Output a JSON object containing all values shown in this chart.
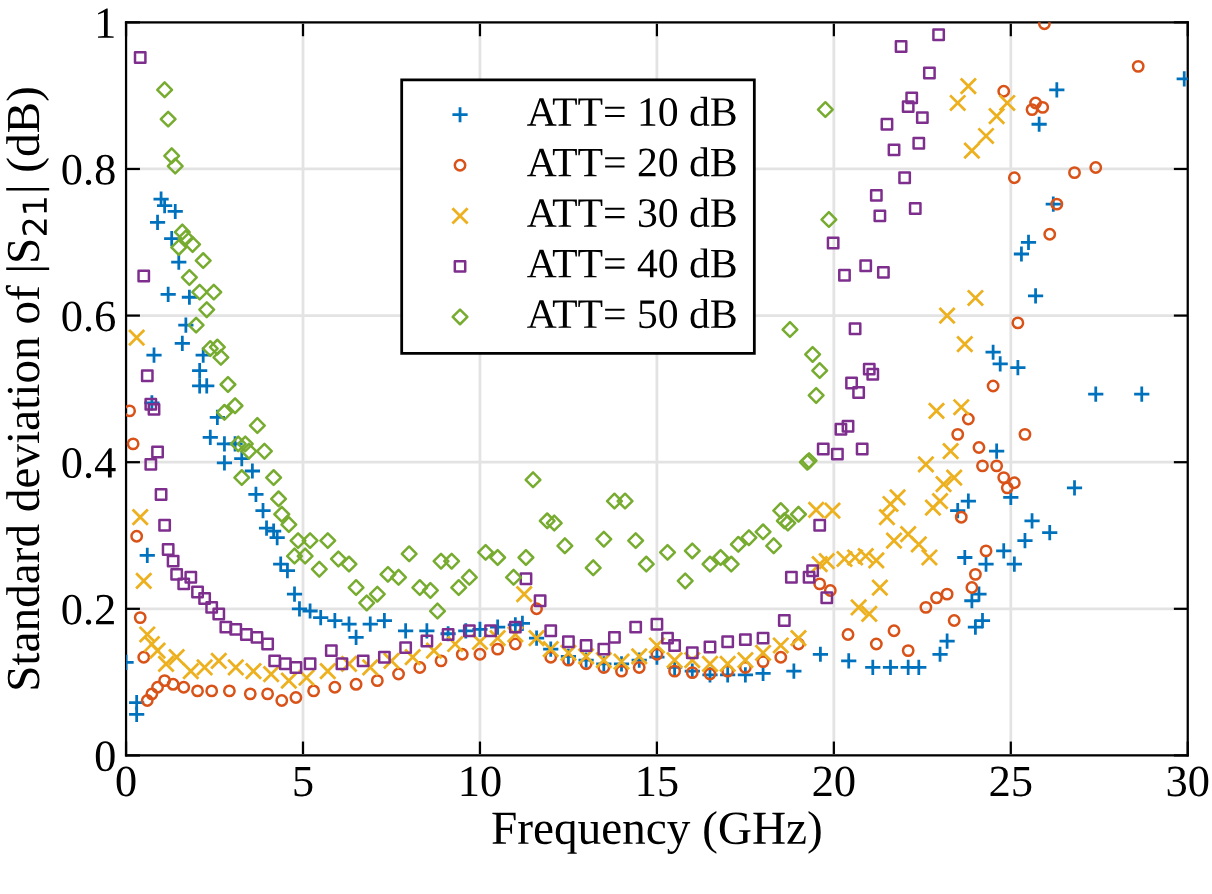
{
  "chart_data": {
    "type": "scatter",
    "xlabel": "Frequency (GHz)",
    "ylabel": "Standard deviation of |S$_{21}$| (dB)",
    "xlim": [
      0,
      30
    ],
    "ylim": [
      0,
      1
    ],
    "xticks": [
      0,
      5,
      10,
      15,
      20,
      25,
      30
    ],
    "yticks": [
      0,
      0.2,
      0.4,
      0.6,
      0.8,
      1
    ],
    "grid": true,
    "legend": "top left",
    "series": [
      {
        "name": "ATT= 10 dB",
        "color": "#0072bd",
        "marker": "plus",
        "x": [
          0,
          0.3,
          0.3,
          0.6,
          0.73,
          0.79,
          0.89,
          0.99,
          1.09,
          1.19,
          1.29,
          1.39,
          1.49,
          1.59,
          1.69,
          1.79,
          2.08,
          2.08,
          2.28,
          2.18,
          2.38,
          2.58,
          2.78,
          2.78,
          3.08,
          3.27,
          3.57,
          3.67,
          3.87,
          3.97,
          4.17,
          4.27,
          4.37,
          4.56,
          4.76,
          4.9,
          5.2,
          5.5,
          5.9,
          6.3,
          6.5,
          6.9,
          7.3,
          7.9,
          8.5,
          9.1,
          9.6,
          10.0,
          10.5,
          11.0,
          11.2,
          11.6,
          12.0,
          12.5,
          13.0,
          13.5,
          14.0,
          14.5,
          15.0,
          15.5,
          16.0,
          16.5,
          17.0,
          17.5,
          18.0,
          18.87,
          19.62,
          20.42,
          21.1,
          21.6,
          22.1,
          22.4,
          23.0,
          23.2,
          23.9,
          24.0,
          24.2,
          23.7,
          23.8,
          23.5,
          24.1,
          24.3,
          24.8,
          25.1,
          25.0,
          24.6,
          24.5,
          24.7,
          25.2,
          25.3,
          25.5,
          25.7,
          25.8,
          26.2,
          26.3,
          25.4,
          25.6,
          26.1,
          26.8,
          27.4,
          28.7,
          29.9
        ],
        "values": [
          0.127,
          0.072,
          0.056,
          0.273,
          0.481,
          0.546,
          0.727,
          0.759,
          0.75,
          0.629,
          0.705,
          0.742,
          0.673,
          0.562,
          0.587,
          0.625,
          0.525,
          0.504,
          0.504,
          0.546,
          0.434,
          0.461,
          0.425,
          0.399,
          0.425,
          0.405,
          0.388,
          0.356,
          0.334,
          0.31,
          0.306,
          0.297,
          0.261,
          0.252,
          0.22,
          0.2,
          0.197,
          0.188,
          0.184,
          0.179,
          0.161,
          0.179,
          0.184,
          0.17,
          0.17,
          0.166,
          0.17,
          0.172,
          0.175,
          0.178,
          0.18,
          0.16,
          0.145,
          0.135,
          0.13,
          0.125,
          0.125,
          0.13,
          0.134,
          0.12,
          0.115,
          0.11,
          0.11,
          0.11,
          0.112,
          0.115,
          0.138,
          0.129,
          0.12,
          0.12,
          0.12,
          0.12,
          0.138,
          0.156,
          0.211,
          0.175,
          0.184,
          0.27,
          0.347,
          0.334,
          0.22,
          0.261,
          0.279,
          0.261,
          0.352,
          0.415,
          0.55,
          0.534,
          0.529,
          0.684,
          0.7,
          0.627,
          0.861,
          0.752,
          0.908,
          0.293,
          0.32,
          0.304,
          0.365,
          0.493,
          0.493,
          0.923
        ]
      },
      {
        "name": "ATT= 20 dB",
        "color": "#d95319",
        "marker": "circle",
        "x": [
          0.1,
          0.2,
          0.3,
          0.4,
          0.5,
          0.6,
          0.73,
          0.89,
          1.09,
          1.33,
          1.63,
          2.02,
          2.42,
          2.92,
          3.51,
          4.0,
          4.4,
          4.8,
          5.3,
          5.9,
          6.5,
          7.1,
          7.7,
          8.3,
          8.9,
          9.5,
          10.0,
          10.5,
          11.0,
          11.6,
          12.0,
          12.5,
          13.0,
          13.5,
          14.0,
          14.5,
          15.0,
          15.5,
          16.0,
          16.5,
          17.0,
          17.5,
          18.0,
          18.5,
          19.0,
          19.6,
          19.9,
          20.4,
          21.2,
          21.7,
          22.1,
          22.6,
          22.9,
          23.2,
          23.4,
          23.9,
          24.0,
          24.3,
          23.6,
          24.1,
          24.2,
          24.6,
          24.8,
          24.9,
          25.1,
          23.5,
          23.8,
          24.5,
          25.2,
          25.4,
          26.1,
          26.3,
          25.1,
          24.8,
          25.6,
          25.7,
          25.9,
          25.95,
          26.8,
          27.4,
          28.6
        ],
        "values": [
          0.47,
          0.425,
          0.299,
          0.188,
          0.134,
          0.075,
          0.084,
          0.093,
          0.102,
          0.097,
          0.093,
          0.088,
          0.088,
          0.088,
          0.084,
          0.084,
          0.075,
          0.079,
          0.088,
          0.093,
          0.097,
          0.102,
          0.111,
          0.12,
          0.129,
          0.138,
          0.138,
          0.145,
          0.152,
          0.2,
          0.134,
          0.13,
          0.125,
          0.12,
          0.115,
          0.12,
          0.138,
          0.115,
          0.113,
          0.111,
          0.115,
          0.12,
          0.128,
          0.134,
          0.152,
          0.234,
          0.225,
          0.165,
          0.152,
          0.17,
          0.143,
          0.202,
          0.215,
          0.22,
          0.184,
          0.229,
          0.247,
          0.279,
          0.325,
          0.42,
          0.395,
          0.395,
          0.379,
          0.365,
          0.372,
          0.438,
          0.459,
          0.504,
          0.59,
          0.438,
          0.711,
          0.752,
          0.788,
          0.906,
          0.881,
          0.89,
          0.884,
          0.998,
          0.795,
          0.802,
          0.94
        ]
      },
      {
        "name": "ATT= 30 dB",
        "color": "#edb120",
        "marker": "cross",
        "x": [
          0.3,
          0.4,
          0.5,
          0.6,
          0.73,
          0.89,
          1.13,
          1.43,
          1.83,
          2.22,
          2.62,
          3.1,
          3.6,
          4.1,
          4.6,
          5.1,
          5.7,
          6.3,
          6.9,
          7.5,
          8.1,
          8.7,
          9.3,
          10.0,
          10.5,
          11.0,
          11.25,
          11.6,
          12.0,
          12.5,
          13.0,
          13.5,
          14.0,
          14.5,
          15.0,
          15.5,
          16.0,
          16.5,
          17.0,
          17.5,
          18.0,
          18.5,
          19.0,
          19.5,
          19.8,
          19.6,
          19.96,
          20.3,
          20.6,
          20.9,
          21.2,
          21.3,
          20.7,
          21.0,
          21.5,
          21.6,
          21.8,
          21.7,
          22.1,
          22.4,
          22.7,
          22.8,
          23.0,
          23.1,
          23.4,
          22.6,
          23.3,
          22.9,
          23.6,
          23.7,
          23.2,
          24.0,
          23.9,
          23.5,
          23.8,
          24.3,
          24.6,
          24.9
        ],
        "values": [
          0.57,
          0.325,
          0.238,
          0.165,
          0.152,
          0.143,
          0.125,
          0.134,
          0.115,
          0.12,
          0.129,
          0.12,
          0.115,
          0.111,
          0.102,
          0.106,
          0.115,
          0.125,
          0.12,
          0.129,
          0.134,
          0.143,
          0.152,
          0.155,
          0.16,
          0.165,
          0.22,
          0.16,
          0.145,
          0.14,
          0.135,
          0.13,
          0.128,
          0.135,
          0.15,
          0.13,
          0.13,
          0.125,
          0.125,
          0.13,
          0.14,
          0.15,
          0.16,
          0.335,
          0.265,
          0.261,
          0.334,
          0.268,
          0.27,
          0.272,
          0.266,
          0.229,
          0.202,
          0.193,
          0.325,
          0.343,
          0.352,
          0.293,
          0.302,
          0.288,
          0.27,
          0.338,
          0.347,
          0.37,
          0.379,
          0.397,
          0.415,
          0.47,
          0.475,
          0.561,
          0.6,
          0.624,
          0.825,
          0.89,
          0.913,
          0.845,
          0.872,
          0.89
        ]
      },
      {
        "name": "ATT= 40 dB",
        "color": "#7e2f8e",
        "marker": "square",
        "x": [
          0.4,
          0.5,
          0.6,
          0.7,
          0.79,
          0.7,
          0.89,
          0.99,
          1.09,
          1.19,
          1.33,
          1.43,
          1.63,
          1.83,
          2.02,
          2.22,
          2.42,
          2.62,
          2.82,
          3.1,
          3.4,
          3.7,
          4.0,
          4.2,
          4.5,
          4.8,
          5.2,
          5.8,
          6.1,
          6.7,
          7.3,
          7.9,
          8.5,
          9.1,
          9.7,
          10.3,
          11.0,
          11.3,
          11.7,
          12.0,
          12.5,
          13.0,
          13.5,
          13.8,
          14.4,
          15.0,
          15.3,
          15.5,
          16.0,
          16.5,
          17.0,
          17.5,
          18.0,
          18.6,
          18.8,
          19.3,
          19.4,
          19.6,
          19.8,
          19.7,
          20.1,
          20.2,
          20.4,
          20.8,
          20.5,
          20.7,
          21.0,
          21.1,
          20.6,
          19.98,
          20.3,
          20.9,
          21.4,
          21.3,
          21.2,
          22.3,
          22.0,
          21.7,
          21.5,
          22.4,
          22.5,
          22.1,
          22.2,
          22.7,
          21.9,
          22.96
        ],
        "values": [
          0.952,
          0.654,
          0.518,
          0.479,
          0.472,
          0.397,
          0.414,
          0.356,
          0.314,
          0.281,
          0.265,
          0.247,
          0.234,
          0.243,
          0.223,
          0.214,
          0.202,
          0.193,
          0.175,
          0.172,
          0.165,
          0.161,
          0.152,
          0.129,
          0.125,
          0.12,
          0.125,
          0.143,
          0.125,
          0.129,
          0.134,
          0.147,
          0.156,
          0.165,
          0.17,
          0.17,
          0.175,
          0.241,
          0.211,
          0.17,
          0.155,
          0.15,
          0.145,
          0.161,
          0.175,
          0.179,
          0.16,
          0.15,
          0.14,
          0.148,
          0.155,
          0.158,
          0.16,
          0.184,
          0.243,
          0.243,
          0.252,
          0.314,
          0.215,
          0.418,
          0.411,
          0.445,
          0.449,
          0.418,
          0.508,
          0.495,
          0.527,
          0.52,
          0.582,
          0.699,
          0.655,
          0.668,
          0.659,
          0.736,
          0.764,
          0.746,
          0.788,
          0.826,
          0.861,
          0.835,
          0.87,
          0.885,
          0.897,
          0.931,
          0.967,
          0.983
        ]
      },
      {
        "name": "ATT= 50 dB",
        "color": "#77ac30",
        "marker": "diamond",
        "x": [
          1.09,
          1.19,
          1.29,
          1.39,
          1.59,
          1.69,
          1.88,
          1.79,
          1.49,
          2.18,
          2.08,
          2.28,
          2.48,
          1.98,
          2.58,
          2.38,
          2.68,
          2.88,
          3.08,
          2.78,
          3.17,
          3.37,
          3.47,
          3.71,
          3.91,
          3.27,
          4.17,
          4.31,
          4.4,
          4.6,
          4.76,
          4.86,
          5.06,
          5.2,
          5.46,
          5.7,
          6.0,
          6.3,
          6.5,
          6.8,
          7.1,
          7.4,
          7.7,
          8.0,
          8.3,
          8.6,
          8.8,
          8.9,
          9.2,
          9.4,
          9.7,
          10.16,
          10.5,
          10.95,
          11.3,
          11.5,
          11.9,
          12.1,
          12.4,
          13.2,
          13.5,
          13.8,
          14.1,
          14.4,
          14.7,
          15.3,
          15.8,
          16.0,
          16.5,
          16.8,
          17.1,
          17.3,
          17.6,
          18.0,
          18.3,
          18.5,
          18.7,
          19.0,
          19.25,
          19.4,
          19.6,
          18.76,
          19.76,
          19.86,
          19.5,
          19.3,
          18.6
        ],
        "values": [
          0.908,
          0.868,
          0.818,
          0.804,
          0.714,
          0.706,
          0.697,
          0.652,
          0.693,
          0.675,
          0.632,
          0.608,
          0.632,
          0.587,
          0.557,
          0.555,
          0.543,
          0.506,
          0.477,
          0.468,
          0.425,
          0.425,
          0.415,
          0.45,
          0.415,
          0.379,
          0.379,
          0.35,
          0.329,
          0.315,
          0.272,
          0.293,
          0.272,
          0.293,
          0.254,
          0.293,
          0.268,
          0.261,
          0.229,
          0.208,
          0.22,
          0.247,
          0.243,
          0.275,
          0.229,
          0.225,
          0.197,
          0.265,
          0.265,
          0.229,
          0.243,
          0.277,
          0.27,
          0.243,
          0.27,
          0.376,
          0.32,
          0.317,
          0.286,
          0.256,
          0.295,
          0.347,
          0.347,
          0.293,
          0.261,
          0.277,
          0.238,
          0.279,
          0.261,
          0.27,
          0.261,
          0.288,
          0.297,
          0.305,
          0.286,
          0.334,
          0.317,
          0.329,
          0.4,
          0.547,
          0.525,
          0.581,
          0.881,
          0.731,
          0.491,
          0.402,
          0.32
        ]
      }
    ]
  }
}
